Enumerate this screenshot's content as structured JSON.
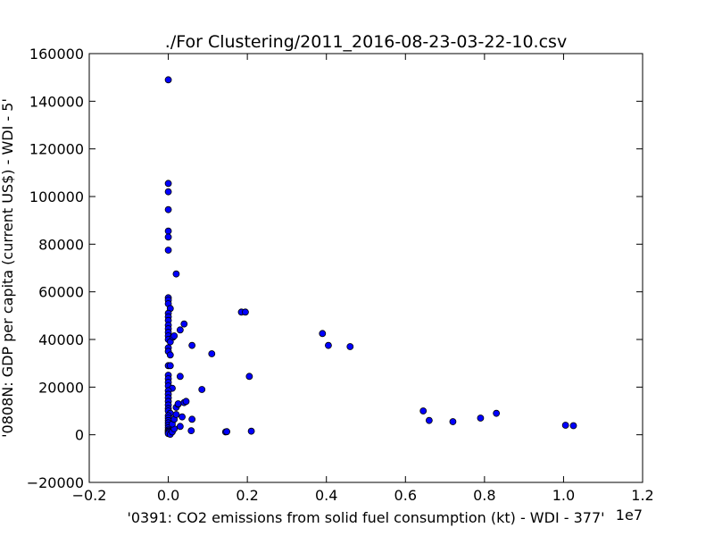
{
  "chart_data": {
    "type": "scatter",
    "title": "./For Clustering/2011_2016-08-23-03-22-10.csv",
    "xlabel": "'0391: CO2 emissions from solid fuel consumption  (kt) - WDI - 377'",
    "ylabel": "'0808N: GDP per capita  (current US$) - WDI - 5'",
    "x_offset_label": "1e7",
    "xlim": [
      -0.2,
      1.2
    ],
    "ylim": [
      -20000,
      160000
    ],
    "x_ticks": [
      -0.2,
      0.0,
      0.2,
      0.4,
      0.6,
      0.8,
      1.0,
      1.2
    ],
    "x_tick_labels": [
      "−0.2",
      "0.0",
      "0.2",
      "0.4",
      "0.6",
      "0.8",
      "1.0",
      "1.2"
    ],
    "y_ticks": [
      -20000,
      0,
      20000,
      40000,
      60000,
      80000,
      100000,
      120000,
      140000,
      160000
    ],
    "y_tick_labels": [
      "−20000",
      "0",
      "20000",
      "40000",
      "60000",
      "80000",
      "100000",
      "120000",
      "140000",
      "160000"
    ],
    "grid": false,
    "marker_color": "#0000ff",
    "marker_edge": "#000000",
    "series": [
      {
        "points": [
          [
            0.0,
            149000
          ],
          [
            0.0,
            105500
          ],
          [
            0.0,
            102000
          ],
          [
            0.0,
            94500
          ],
          [
            0.0,
            85500
          ],
          [
            0.0,
            83000
          ],
          [
            0.0,
            77500
          ],
          [
            0.02,
            67500
          ],
          [
            0.0,
            57500
          ],
          [
            0.0,
            56500
          ],
          [
            0.0,
            55000
          ],
          [
            0.005,
            53000
          ],
          [
            0.0,
            51000
          ],
          [
            0.0,
            49500
          ],
          [
            0.0,
            48000
          ],
          [
            0.0,
            46000
          ],
          [
            0.0,
            44500
          ],
          [
            0.0,
            43000
          ],
          [
            0.0,
            41500
          ],
          [
            0.0,
            40000
          ],
          [
            0.005,
            39000
          ],
          [
            0.0,
            36500
          ],
          [
            0.0,
            35000
          ],
          [
            0.005,
            33500
          ],
          [
            0.0,
            29000
          ],
          [
            0.005,
            29000
          ],
          [
            0.0,
            25000
          ],
          [
            0.0,
            23500
          ],
          [
            0.0,
            22000
          ],
          [
            0.0,
            20500
          ],
          [
            0.01,
            19500
          ],
          [
            0.0,
            18500
          ],
          [
            0.0,
            17000
          ],
          [
            0.0,
            15500
          ],
          [
            0.0,
            14000
          ],
          [
            0.0,
            12500
          ],
          [
            0.0,
            11000
          ],
          [
            0.0,
            10000
          ],
          [
            0.005,
            9000
          ],
          [
            0.0,
            8000
          ],
          [
            0.0,
            7000
          ],
          [
            0.0,
            6000
          ],
          [
            0.0,
            5000
          ],
          [
            0.0,
            4000
          ],
          [
            0.0,
            3000
          ],
          [
            0.0,
            2000
          ],
          [
            0.0,
            1500
          ],
          [
            0.0,
            1000
          ],
          [
            0.0,
            500
          ],
          [
            0.005,
            200
          ],
          [
            0.01,
            1200
          ],
          [
            0.015,
            2500
          ],
          [
            0.01,
            4500
          ],
          [
            0.015,
            6500
          ],
          [
            0.02,
            8500
          ],
          [
            0.02,
            11500
          ],
          [
            0.025,
            12800
          ],
          [
            0.025,
            13000
          ],
          [
            0.012,
            41000
          ],
          [
            0.015,
            41500
          ],
          [
            0.03,
            44000
          ],
          [
            0.04,
            46500
          ],
          [
            0.06,
            37500
          ],
          [
            0.03,
            24500
          ],
          [
            0.04,
            13500
          ],
          [
            0.045,
            14000
          ],
          [
            0.035,
            7500
          ],
          [
            0.06,
            6500
          ],
          [
            0.03,
            3500
          ],
          [
            0.058,
            1700
          ],
          [
            0.085,
            19000
          ],
          [
            0.11,
            34000
          ],
          [
            0.145,
            1200
          ],
          [
            0.148,
            1300
          ],
          [
            0.185,
            51500
          ],
          [
            0.195,
            51500
          ],
          [
            0.205,
            24500
          ],
          [
            0.21,
            1500
          ],
          [
            0.39,
            42500
          ],
          [
            0.405,
            37500
          ],
          [
            0.46,
            37000
          ],
          [
            0.645,
            10000
          ],
          [
            0.66,
            6000
          ],
          [
            0.72,
            5500
          ],
          [
            0.79,
            7000
          ],
          [
            0.83,
            9000
          ],
          [
            1.005,
            4000
          ],
          [
            1.025,
            3800
          ]
        ]
      }
    ]
  }
}
